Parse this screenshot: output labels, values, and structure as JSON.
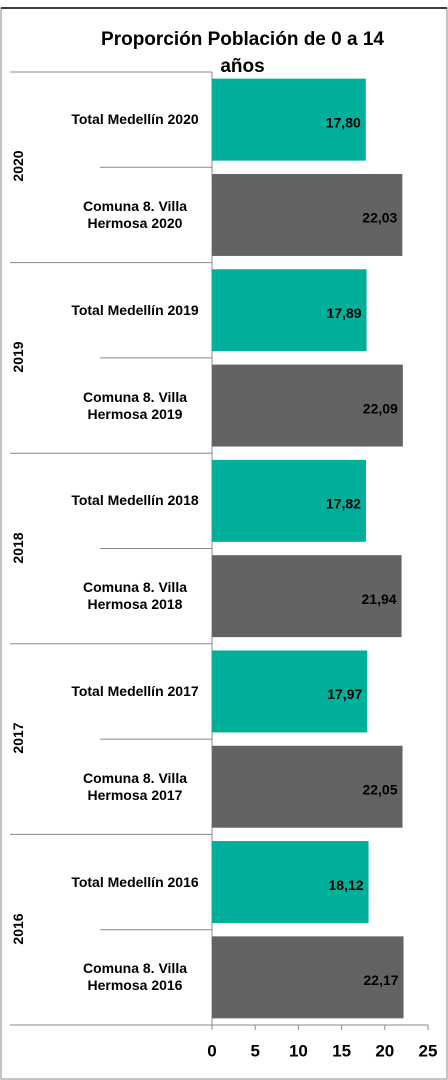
{
  "chart_data": {
    "type": "bar",
    "orientation": "horizontal",
    "title": "Proporción Población de 0 a 14 años",
    "categories": [
      "Total Medellín 2020",
      "Comuna 8. Villa Hermosa 2020",
      "Total Medellín 2019",
      "Comuna 8. Villa Hermosa 2019",
      "Total Medellín 2018",
      "Comuna 8. Villa Hermosa 2018",
      "Total Medellín 2017",
      "Comuna 8. Villa Hermosa 2017",
      "Total Medellín 2016",
      "Comuna 8. Villa Hermosa 2016"
    ],
    "groups": [
      "2020",
      "2019",
      "2018",
      "2017",
      "2016"
    ],
    "values": [
      17.8,
      22.03,
      17.89,
      22.09,
      17.82,
      21.94,
      17.97,
      22.05,
      18.12,
      22.17
    ],
    "value_labels": [
      "17,80",
      "22,03",
      "17,89",
      "22,09",
      "17,82",
      "21,94",
      "17,97",
      "22,05",
      "18,12",
      "22,17"
    ],
    "colors": [
      "#00af9a",
      "#636363",
      "#00af9a",
      "#636363",
      "#00af9a",
      "#636363",
      "#00af9a",
      "#636363",
      "#00af9a",
      "#636363"
    ],
    "xlim": [
      0,
      25
    ],
    "xticks": [
      0,
      5,
      10,
      15,
      20,
      25
    ]
  }
}
